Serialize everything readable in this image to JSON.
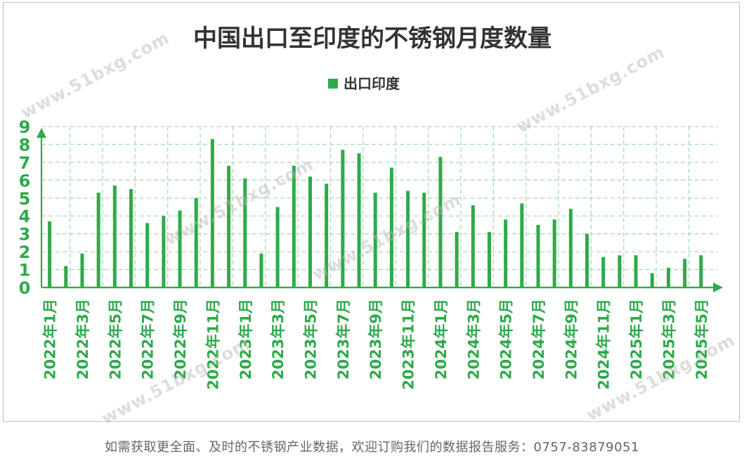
{
  "chart_data": {
    "type": "bar",
    "title": "中国出口至印度的不锈钢月度数量",
    "xlabel": "",
    "ylabel": "",
    "ylim": [
      0,
      9
    ],
    "yticks": [
      "0",
      "1",
      "2",
      "3",
      "4",
      "5",
      "6",
      "7",
      "8",
      "9"
    ],
    "grid": true,
    "legend_position": "top-center",
    "categories": [
      "2022年1月",
      "2022年2月",
      "2022年3月",
      "2022年4月",
      "2022年5月",
      "2022年6月",
      "2022年7月",
      "2022年8月",
      "2022年9月",
      "2022年10月",
      "2022年11月",
      "2022年12月",
      "2023年1月",
      "2023年2月",
      "2023年3月",
      "2023年4月",
      "2023年5月",
      "2023年6月",
      "2023年7月",
      "2023年8月",
      "2023年9月",
      "2023年10月",
      "2023年11月",
      "2023年12月",
      "2024年1月",
      "2024年2月",
      "2024年3月",
      "2024年4月",
      "2024年5月",
      "2024年6月",
      "2024年7月",
      "2024年8月",
      "2024年9月",
      "2024年10月",
      "2024年11月",
      "2024年12月",
      "2025年1月",
      "2025年2月",
      "2025年3月",
      "2025年4月",
      "2025年5月"
    ],
    "visible_tick_labels": [
      "2022年1月",
      "2022年3月",
      "2022年5月",
      "2022年7月",
      "2022年9月",
      "2022年11月",
      "2023年1月",
      "2023年3月",
      "2023年5月",
      "2023年7月",
      "2023年9月",
      "2023年11月",
      "2024年1月",
      "2024年3月",
      "2024年5月",
      "2024年7月",
      "2024年9月",
      "2024年11月",
      "2025年1月",
      "2025年3月",
      "2025年5月"
    ],
    "series": [
      {
        "name": "出口印度",
        "color": "#2eaa4a",
        "values": [
          3.7,
          1.2,
          1.9,
          5.3,
          5.7,
          5.5,
          3.6,
          4.0,
          4.3,
          5.0,
          8.3,
          6.8,
          6.1,
          1.9,
          4.5,
          6.8,
          6.2,
          5.8,
          7.7,
          7.5,
          5.3,
          6.7,
          5.4,
          5.3,
          7.3,
          3.1,
          4.6,
          3.1,
          3.8,
          4.7,
          3.5,
          3.8,
          4.4,
          3.0,
          1.7,
          1.8,
          1.8,
          0.8,
          1.1,
          1.6,
          1.8
        ]
      }
    ]
  },
  "colors": {
    "bar": "#2eaa4a",
    "axis": "#2eaa4a",
    "grid": "#a9dcb5",
    "title": "#333333",
    "watermark": "#b4b4b4"
  },
  "watermark_text": "www.51bxg.com",
  "footer_text": "如需获取更全面、及时的不锈钢产业数据，欢迎订购我们的数据报告服务：0757-83879051"
}
